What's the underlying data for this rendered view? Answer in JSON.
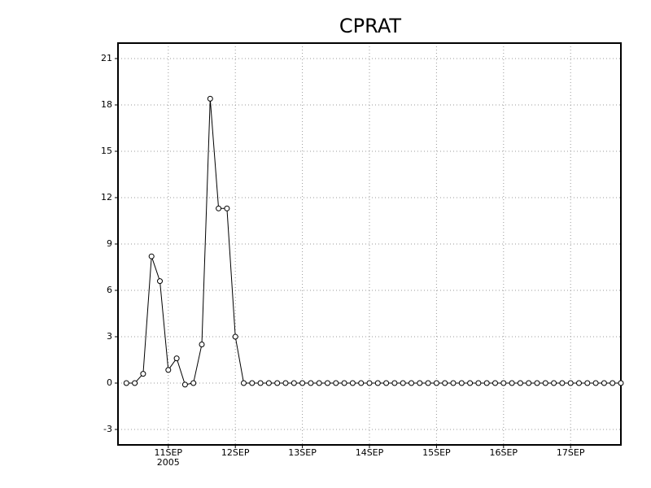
{
  "chart_data": {
    "type": "line",
    "title": "CPRAT",
    "year_label": "2005",
    "categories": [
      null,
      null,
      null,
      null,
      null,
      "11SEP",
      null,
      null,
      null,
      null,
      null,
      null,
      null,
      "12SEP",
      null,
      null,
      null,
      null,
      null,
      null,
      null,
      "13SEP",
      null,
      null,
      null,
      null,
      null,
      null,
      null,
      "14SEP",
      null,
      null,
      null,
      null,
      null,
      null,
      null,
      "15SEP",
      null,
      null,
      null,
      null,
      null,
      null,
      null,
      "16SEP",
      null,
      null,
      null,
      null,
      null,
      null,
      null,
      "17SEP",
      null,
      null,
      null,
      null,
      null,
      null
    ],
    "values": [
      0,
      0,
      0.6,
      8.2,
      6.6,
      0.85,
      1.6,
      -0.1,
      0,
      2.5,
      18.4,
      11.3,
      11.3,
      3.0,
      0,
      0,
      0,
      0,
      0,
      0,
      0,
      0,
      0,
      0,
      0,
      0,
      0,
      0,
      0,
      0,
      0,
      0,
      0,
      0,
      0,
      0,
      0,
      0,
      0,
      0,
      0,
      0,
      0,
      0,
      0,
      0,
      0,
      0,
      0,
      0,
      0,
      0,
      0,
      0,
      0,
      0,
      0,
      0,
      0,
      0
    ],
    "color": "#000000",
    "ylim": [
      -4,
      22
    ],
    "yticks": [
      -3,
      0,
      3,
      6,
      9,
      12,
      15,
      18,
      21
    ],
    "grid": true
  }
}
